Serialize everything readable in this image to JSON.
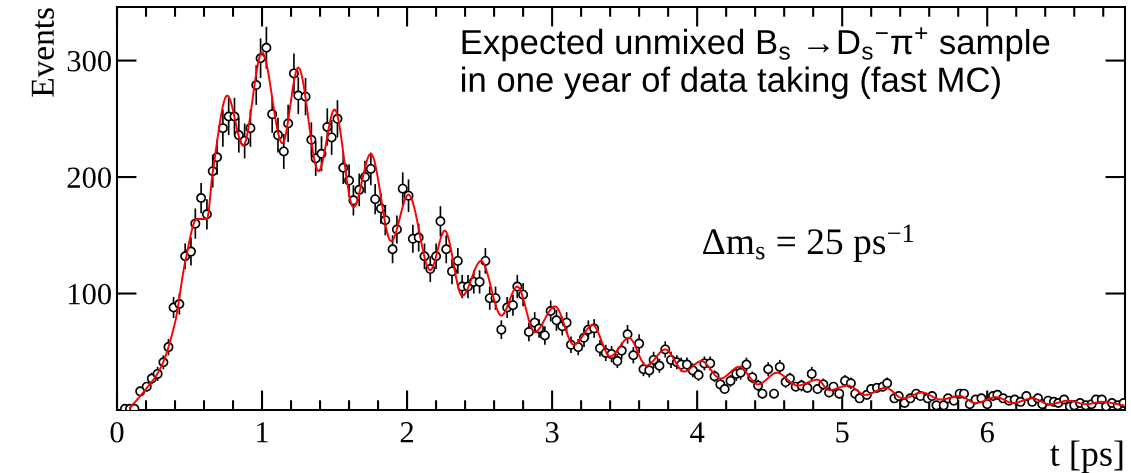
{
  "chart_data": {
    "type": "scatter",
    "xlabel": "t [ps]",
    "ylabel": "Events",
    "annotations": [
      "Expected unmixed B$_{s}$ →D$_{s}$$^{−}$π$^{+}$ sample\nin one year of data taking (fast MC)",
      "Δm$_{s}$ = 25 ps$^{−1}$"
    ],
    "xlim": [
      0,
      6.95
    ],
    "ylim": [
      0,
      346
    ],
    "xticks": [
      0,
      {
        "value": 0.2,
        "label": null
      },
      {
        "value": 0.4,
        "label": null
      },
      {
        "value": 0.6,
        "label": null
      },
      {
        "value": 0.8,
        "label": null
      },
      1,
      {
        "value": 1.2,
        "label": null
      },
      {
        "value": 1.4,
        "label": null
      },
      {
        "value": 1.6,
        "label": null
      },
      {
        "value": 1.8,
        "label": null
      },
      2,
      {
        "value": 2.2,
        "label": null
      },
      {
        "value": 2.4,
        "label": null
      },
      {
        "value": 2.6,
        "label": null
      },
      {
        "value": 2.8,
        "label": null
      },
      3,
      {
        "value": 3.2,
        "label": null
      },
      {
        "value": 3.4,
        "label": null
      },
      {
        "value": 3.6,
        "label": null
      },
      {
        "value": 3.8,
        "label": null
      },
      4,
      {
        "value": 4.2,
        "label": null
      },
      {
        "value": 4.4,
        "label": null
      },
      {
        "value": 4.6,
        "label": null
      },
      {
        "value": 4.8,
        "label": null
      },
      5,
      {
        "value": 5.2,
        "label": null
      },
      {
        "value": 5.4,
        "label": null
      },
      {
        "value": 5.6,
        "label": null
      },
      {
        "value": 5.8,
        "label": null
      },
      6,
      {
        "value": 6.2,
        "label": null
      },
      {
        "value": 6.4,
        "label": null
      },
      {
        "value": 6.6,
        "label": null
      },
      {
        "value": 6.8,
        "label": null
      }
    ],
    "yticks": [
      100,
      200,
      300
    ],
    "grid": false,
    "legend": false,
    "series": [
      {
        "marker": "circle",
        "color": "#000000",
        "x": [
          0.055,
          0.09,
          0.12,
          0.16,
          0.205,
          0.24,
          0.28,
          0.32,
          0.355,
          0.39,
          0.43,
          0.47,
          0.51,
          0.54,
          0.58,
          0.62,
          0.66,
          0.69,
          0.73,
          0.77,
          0.81,
          0.84,
          0.88,
          0.92,
          0.96,
          0.99,
          1.03,
          1.07,
          1.11,
          1.15,
          1.18,
          1.22,
          1.25,
          1.3,
          1.34,
          1.37,
          1.41,
          1.45,
          1.48,
          1.52,
          1.56,
          1.6,
          1.63,
          1.67,
          1.71,
          1.75,
          1.78,
          1.82,
          1.85,
          1.9,
          1.93,
          1.97,
          2.01,
          2.04,
          2.08,
          2.12,
          2.16,
          2.2,
          2.23,
          2.27,
          2.31,
          2.35,
          2.38,
          2.42,
          2.46,
          2.5,
          2.54,
          2.57,
          2.61,
          2.65,
          2.69,
          2.73,
          2.76,
          2.8,
          2.84,
          2.88,
          2.91,
          2.95,
          2.99,
          3.03,
          3.07,
          3.1,
          3.13,
          3.18,
          3.22,
          3.25,
          3.29,
          3.33,
          3.37,
          3.41,
          3.45,
          3.48,
          3.52,
          3.56,
          3.6,
          3.63,
          3.67,
          3.7,
          3.74,
          3.78,
          3.82,
          3.86,
          3.89,
          3.93,
          3.97,
          4.01,
          4.05,
          4.09,
          4.12,
          4.16,
          4.19,
          4.23,
          4.27,
          4.3,
          4.34,
          4.38,
          4.42,
          4.45,
          4.49,
          4.53,
          4.57,
          4.61,
          4.64,
          4.68,
          4.72,
          4.76,
          4.79,
          4.83,
          4.87,
          4.91,
          4.94,
          4.98,
          5.02,
          5.06,
          5.09,
          5.12,
          5.17,
          5.2,
          5.24,
          5.28,
          5.31,
          5.36,
          5.39,
          5.43,
          5.47,
          5.51,
          5.54,
          5.59,
          5.62,
          5.65,
          5.7,
          5.73,
          5.77,
          5.81,
          5.84,
          5.88,
          5.92,
          5.96,
          6.0,
          6.04,
          6.07,
          6.11,
          6.15,
          6.19,
          6.23,
          6.27,
          6.31,
          6.35,
          6.38,
          6.42,
          6.46,
          6.49,
          6.53,
          6.57,
          6.6,
          6.64,
          6.68,
          6.72,
          6.75,
          6.79,
          6.82,
          6.86,
          6.9,
          6.94
        ],
        "values": [
          1,
          1,
          1,
          16,
          20,
          27,
          31,
          41,
          54,
          88,
          91,
          132,
          136,
          160,
          182,
          168,
          205,
          217,
          242,
          252,
          252,
          236,
          231,
          242,
          279,
          302,
          311,
          254,
          236,
          222,
          246,
          289,
          270,
          269,
          232,
          216,
          220,
          243,
          234,
          250,
          208,
          197,
          180,
          189,
          200,
          207,
          181,
          173,
          163,
          138,
          155,
          190,
          184,
          147,
          148,
          132,
          121,
          132,
          162,
          138,
          119,
          128,
          106,
          106,
          110,
          110,
          128,
          96,
          96,
          69,
          88,
          90,
          106,
          99,
          67,
          75,
          70,
          64,
          85,
          77,
          72,
          75,
          56,
          54,
          62,
          69,
          70,
          53,
          49,
          48,
          42,
          51,
          65,
          47,
          57,
          35,
          34,
          43,
          38,
          52,
          43,
          41,
          39,
          39,
          34,
          30,
          40,
          40,
          29,
          22,
          18,
          25,
          31,
          32,
          39,
          28,
          21,
          14,
          35,
          14,
          37,
          24,
          27,
          20,
          21,
          19,
          31,
          18,
          22,
          15,
          20,
          14,
          25,
          23,
          14,
          10,
          13,
          18,
          19,
          20,
          23,
          10,
          12,
          6,
          10,
          14,
          12,
          10,
          12,
          4,
          4,
          10,
          8,
          14,
          14,
          5,
          9,
          10,
          5,
          12,
          13,
          10,
          8,
          9,
          7,
          12,
          7,
          10,
          5,
          8,
          7,
          6,
          9,
          3,
          4,
          6,
          4,
          5,
          9,
          9,
          3,
          6,
          4,
          6
        ],
        "errors": [
          1,
          1,
          1,
          4,
          4,
          5,
          6,
          6,
          7,
          9,
          9,
          11,
          12,
          13,
          13,
          13,
          14,
          15,
          16,
          16,
          16,
          15,
          15,
          16,
          17,
          17,
          18,
          16,
          15,
          15,
          16,
          17,
          16,
          16,
          15,
          15,
          15,
          16,
          15,
          16,
          14,
          14,
          13,
          14,
          14,
          14,
          13,
          13,
          13,
          12,
          12,
          14,
          14,
          12,
          12,
          11,
          11,
          11,
          13,
          12,
          11,
          11,
          10,
          10,
          10,
          10,
          11,
          10,
          10,
          8,
          9,
          9,
          10,
          10,
          8,
          9,
          8,
          8,
          9,
          9,
          8,
          9,
          7,
          7,
          8,
          8,
          8,
          7,
          7,
          7,
          6,
          7,
          8,
          7,
          8,
          6,
          6,
          7,
          6,
          7,
          7,
          6,
          6,
          6,
          6,
          5,
          6,
          6,
          5,
          5,
          4,
          5,
          6,
          6,
          6,
          5,
          5,
          4,
          6,
          4,
          6,
          5,
          5,
          4,
          5,
          4,
          6,
          4,
          5,
          4,
          4,
          4,
          5,
          5,
          4,
          3,
          4,
          4,
          4,
          4,
          5,
          3,
          3,
          2,
          3,
          4,
          3,
          3,
          3,
          2,
          2,
          3,
          3,
          4,
          4,
          2,
          3,
          3,
          2,
          3,
          4,
          3,
          3,
          3,
          3,
          3,
          3,
          3,
          2,
          3,
          3,
          2,
          3,
          2,
          2,
          2,
          2,
          2,
          3,
          3,
          2,
          2,
          2,
          2
        ]
      },
      {
        "type": "line",
        "color": "#ff0000",
        "line_style": "solid",
        "marker": "none",
        "x": [
          0.09,
          0.2,
          0.3,
          0.4,
          0.47,
          0.55,
          0.62,
          0.66,
          0.76,
          0.87,
          1.0,
          1.14,
          1.25,
          1.39,
          1.5,
          1.63,
          1.75,
          1.89,
          2.01,
          2.16,
          2.26,
          2.38,
          2.51,
          2.65,
          2.76,
          2.88,
          3.02,
          3.15,
          3.28,
          3.4,
          3.53,
          3.65,
          3.78,
          3.91,
          4.03,
          4.16,
          4.29,
          4.42,
          4.55,
          4.69,
          4.83,
          4.91,
          5.04,
          5.16,
          5.3,
          5.42,
          5.55,
          5.68,
          5.81,
          5.92,
          6.06,
          6.18,
          6.31,
          6.43,
          6.56,
          6.68,
          6.79,
          6.94
        ],
        "values": [
          2,
          18,
          36,
          75,
          127,
          164,
          164,
          204,
          270,
          227,
          307,
          229,
          294,
          205,
          258,
          174,
          220,
          145,
          185,
          120,
          154,
          98,
          128,
          81,
          106,
          67,
          89,
          56,
          73,
          46,
          62,
          38,
          52,
          33,
          42,
          27,
          37,
          22,
          32,
          21,
          26,
          17,
          21,
          13,
          19,
          10,
          15,
          9,
          12,
          6,
          11,
          6,
          10,
          5,
          8,
          5,
          7,
          4
        ]
      }
    ]
  }
}
